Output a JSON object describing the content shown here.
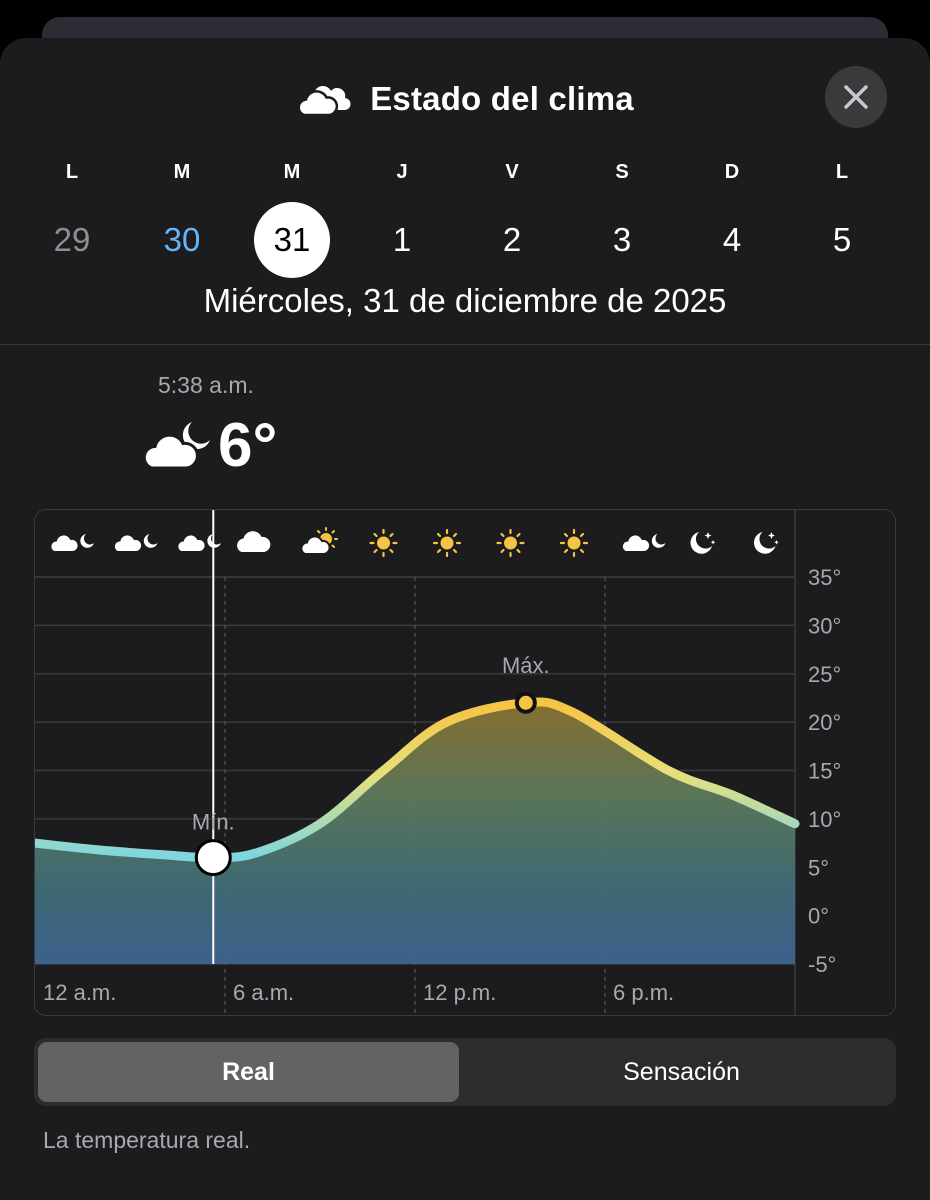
{
  "header": {
    "title": "Estado del clima",
    "title_icon": "cloud-icon",
    "close_icon": "close-icon"
  },
  "week": {
    "days": [
      {
        "abbr": "L",
        "num": "29",
        "state": "past"
      },
      {
        "abbr": "M",
        "num": "30",
        "state": "today"
      },
      {
        "abbr": "M",
        "num": "31",
        "state": "selected"
      },
      {
        "abbr": "J",
        "num": "1",
        "state": "future"
      },
      {
        "abbr": "V",
        "num": "2",
        "state": "future"
      },
      {
        "abbr": "S",
        "num": "3",
        "state": "future"
      },
      {
        "abbr": "D",
        "num": "4",
        "state": "future"
      },
      {
        "abbr": "L",
        "num": "5",
        "state": "future"
      }
    ],
    "full_date": "Miércoles, 31 de diciembre de 2025"
  },
  "current": {
    "time": "5:38 a.m.",
    "temp": "6°",
    "icon": "cloud-moon-icon"
  },
  "chart_data": {
    "type": "area",
    "x_unit": "hour",
    "xlim": [
      0,
      24
    ],
    "ylim": [
      -5,
      35
    ],
    "y_ticks": [
      "35°",
      "30°",
      "25°",
      "20°",
      "15°",
      "10°",
      "5°",
      "0°",
      "-5°"
    ],
    "x_ticks": [
      {
        "hour": 0,
        "label": "12 a.m."
      },
      {
        "hour": 6,
        "label": "6 a.m."
      },
      {
        "hour": 12,
        "label": "12 p.m."
      },
      {
        "hour": 18,
        "label": "6 p.m."
      }
    ],
    "x": [
      0,
      2,
      4,
      5.63,
      7,
      9,
      11,
      13,
      15.5,
      17,
      20,
      22,
      24
    ],
    "values": [
      7.5,
      6.8,
      6.3,
      6.0,
      6.5,
      9.5,
      15.0,
      20.0,
      22.0,
      21.0,
      15.0,
      12.5,
      9.5
    ],
    "hourly_icons": [
      "cloud-moon-icon",
      "cloud-moon-icon",
      "cloud-moon-icon",
      "cloud-icon",
      "cloud-sun-icon",
      "sun-icon",
      "sun-icon",
      "sun-icon",
      "sun-icon",
      "cloud-moon-icon",
      "moon-stars-icon",
      "moon-stars-icon"
    ],
    "min": {
      "hour": 5.63,
      "value": 6,
      "label": "Mín."
    },
    "max": {
      "hour": 15.5,
      "value": 22,
      "label": "Máx."
    },
    "current_hour": 5.63,
    "grid": true
  },
  "toggle": {
    "options": [
      "Real",
      "Sensación"
    ],
    "selected": "Real"
  },
  "description": "La temperatura real.",
  "colors": {
    "background": "#1c1c1e",
    "accent_today": "#64b5f6",
    "cold_line": "#7fd6e0",
    "warm_line": "#f6c443"
  }
}
